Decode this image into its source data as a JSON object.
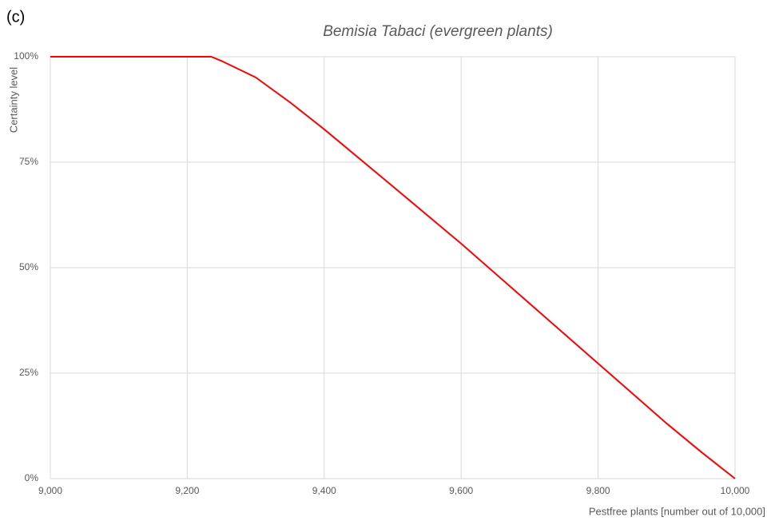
{
  "chart_data": {
    "type": "line",
    "annotation": "(c)",
    "title": "Bemisia Tabaci (evergreen plants)",
    "xlabel": "Pestfree plants [number out of 10,000]",
    "ylabel": "Certainty level",
    "x": [
      9000,
      9100,
      9200,
      9235,
      9250,
      9300,
      9350,
      9400,
      9500,
      9600,
      9700,
      9800,
      9900,
      9950,
      10000
    ],
    "series": [
      {
        "name": "Certainty level",
        "color": "#ff0000",
        "values": [
          100,
          100,
          100,
          100,
          99,
          95.1,
          89.2,
          82.8,
          69.3,
          55.7,
          41.5,
          27.3,
          13.1,
          6.4,
          0
        ]
      }
    ],
    "xlim": [
      9000,
      10000
    ],
    "xticks": [
      {
        "value": 9000,
        "label": "9,000"
      },
      {
        "value": 9200,
        "label": "9,200"
      },
      {
        "value": 9400,
        "label": "9,400"
      },
      {
        "value": 9600,
        "label": "9,600"
      },
      {
        "value": 9800,
        "label": "9,800"
      },
      {
        "value": 10000,
        "label": "10,000"
      }
    ],
    "ylim": [
      0,
      100
    ],
    "yticks": [
      {
        "value": 0,
        "label": "0%"
      },
      {
        "value": 25,
        "label": "25%"
      },
      {
        "value": 50,
        "label": "50%"
      },
      {
        "value": 75,
        "label": "75%"
      },
      {
        "value": 100,
        "label": "100%"
      }
    ],
    "grid": true
  }
}
